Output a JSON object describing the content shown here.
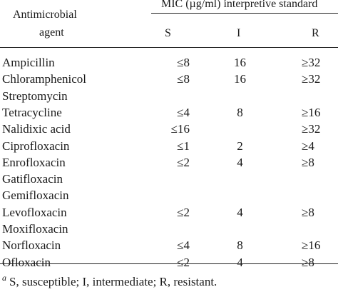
{
  "header": {
    "agent_line1": "Antimicrobial",
    "agent_line2": "agent",
    "standard": "MIC (µg/ml) interpretive standard",
    "col_s": "S",
    "col_i": "I",
    "col_r": "R"
  },
  "rows": [
    {
      "agent": "Ampicillin",
      "s": "≤8",
      "i": "16",
      "r": "≥32"
    },
    {
      "agent": "Chloramphenicol",
      "s": "≤8",
      "i": "16",
      "r": "≥32"
    },
    {
      "agent": "Streptomycin",
      "s": "",
      "i": "",
      "r": ""
    },
    {
      "agent": "Tetracycline",
      "s": "≤4",
      "i": "8",
      "r": "≥16"
    },
    {
      "agent": "Nalidixic acid",
      "s": "≤16",
      "i": "",
      "r": "≥32"
    },
    {
      "agent": "Ciprofloxacin",
      "s": "≤1",
      "i": "2",
      "r": "≥4"
    },
    {
      "agent": "Enrofloxacin",
      "s": "≤2",
      "i": "4",
      "r": "≥8"
    },
    {
      "agent": "Gatifloxacin",
      "s": "",
      "i": "",
      "r": ""
    },
    {
      "agent": "Gemifloxacin",
      "s": "",
      "i": "",
      "r": ""
    },
    {
      "agent": "Levofloxacin",
      "s": "≤2",
      "i": "4",
      "r": "≥8"
    },
    {
      "agent": "Moxifloxacin",
      "s": "",
      "i": "",
      "r": ""
    },
    {
      "agent": "Norfloxacin",
      "s": "≤4",
      "i": "8",
      "r": "≥16"
    },
    {
      "agent": "Ofloxacin",
      "s": "≤2",
      "i": "4",
      "r": "≥8"
    }
  ],
  "footnote": {
    "marker": "a",
    "text": "S, susceptible; I, intermediate; R, resistant."
  }
}
